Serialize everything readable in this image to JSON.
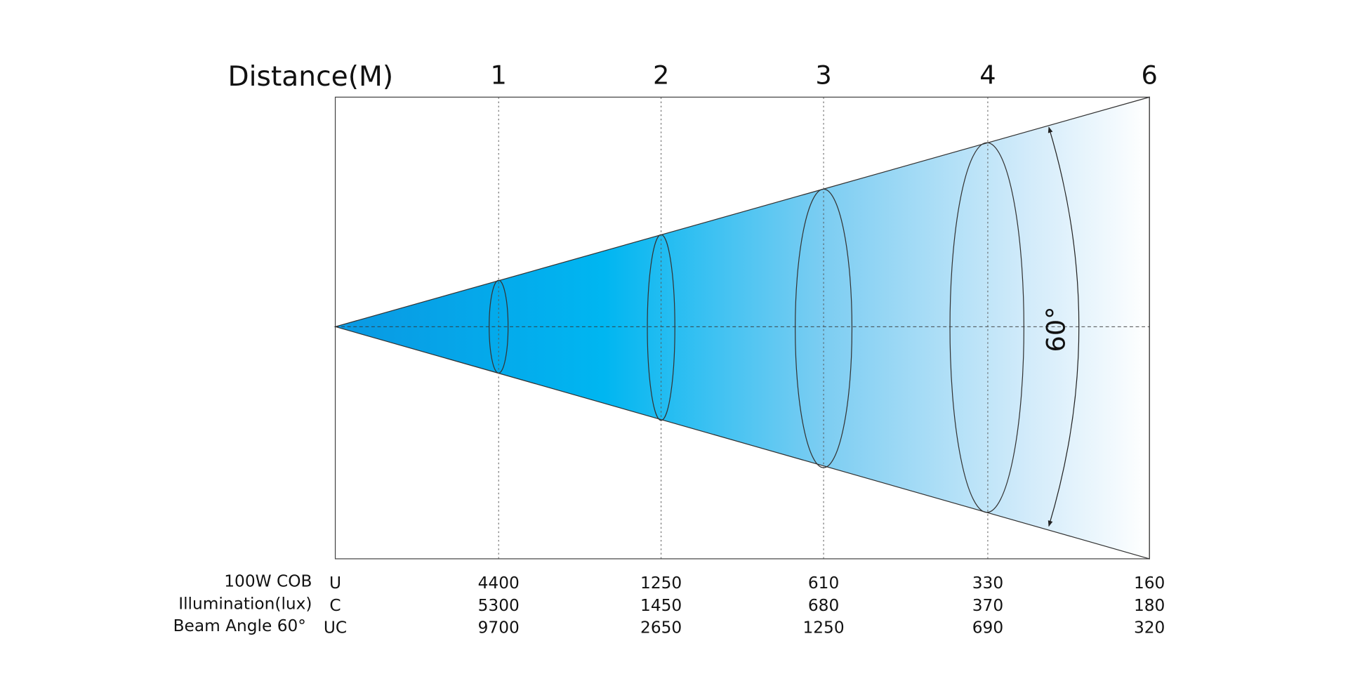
{
  "header": {
    "distance_label": "Distance(M)",
    "distances": [
      1,
      2,
      3,
      4,
      6
    ]
  },
  "beam_angle_label": "60°",
  "table": {
    "title_lines": [
      "100W COB",
      "Illumination(lux)",
      "Beam Angle 60°"
    ],
    "rows": [
      {
        "label": "U",
        "values": [
          4400,
          1250,
          610,
          330,
          160
        ]
      },
      {
        "label": "C",
        "values": [
          5300,
          1450,
          680,
          370,
          180
        ]
      },
      {
        "label": "UC",
        "values": [
          9700,
          2650,
          1250,
          690,
          320
        ]
      }
    ]
  }
}
